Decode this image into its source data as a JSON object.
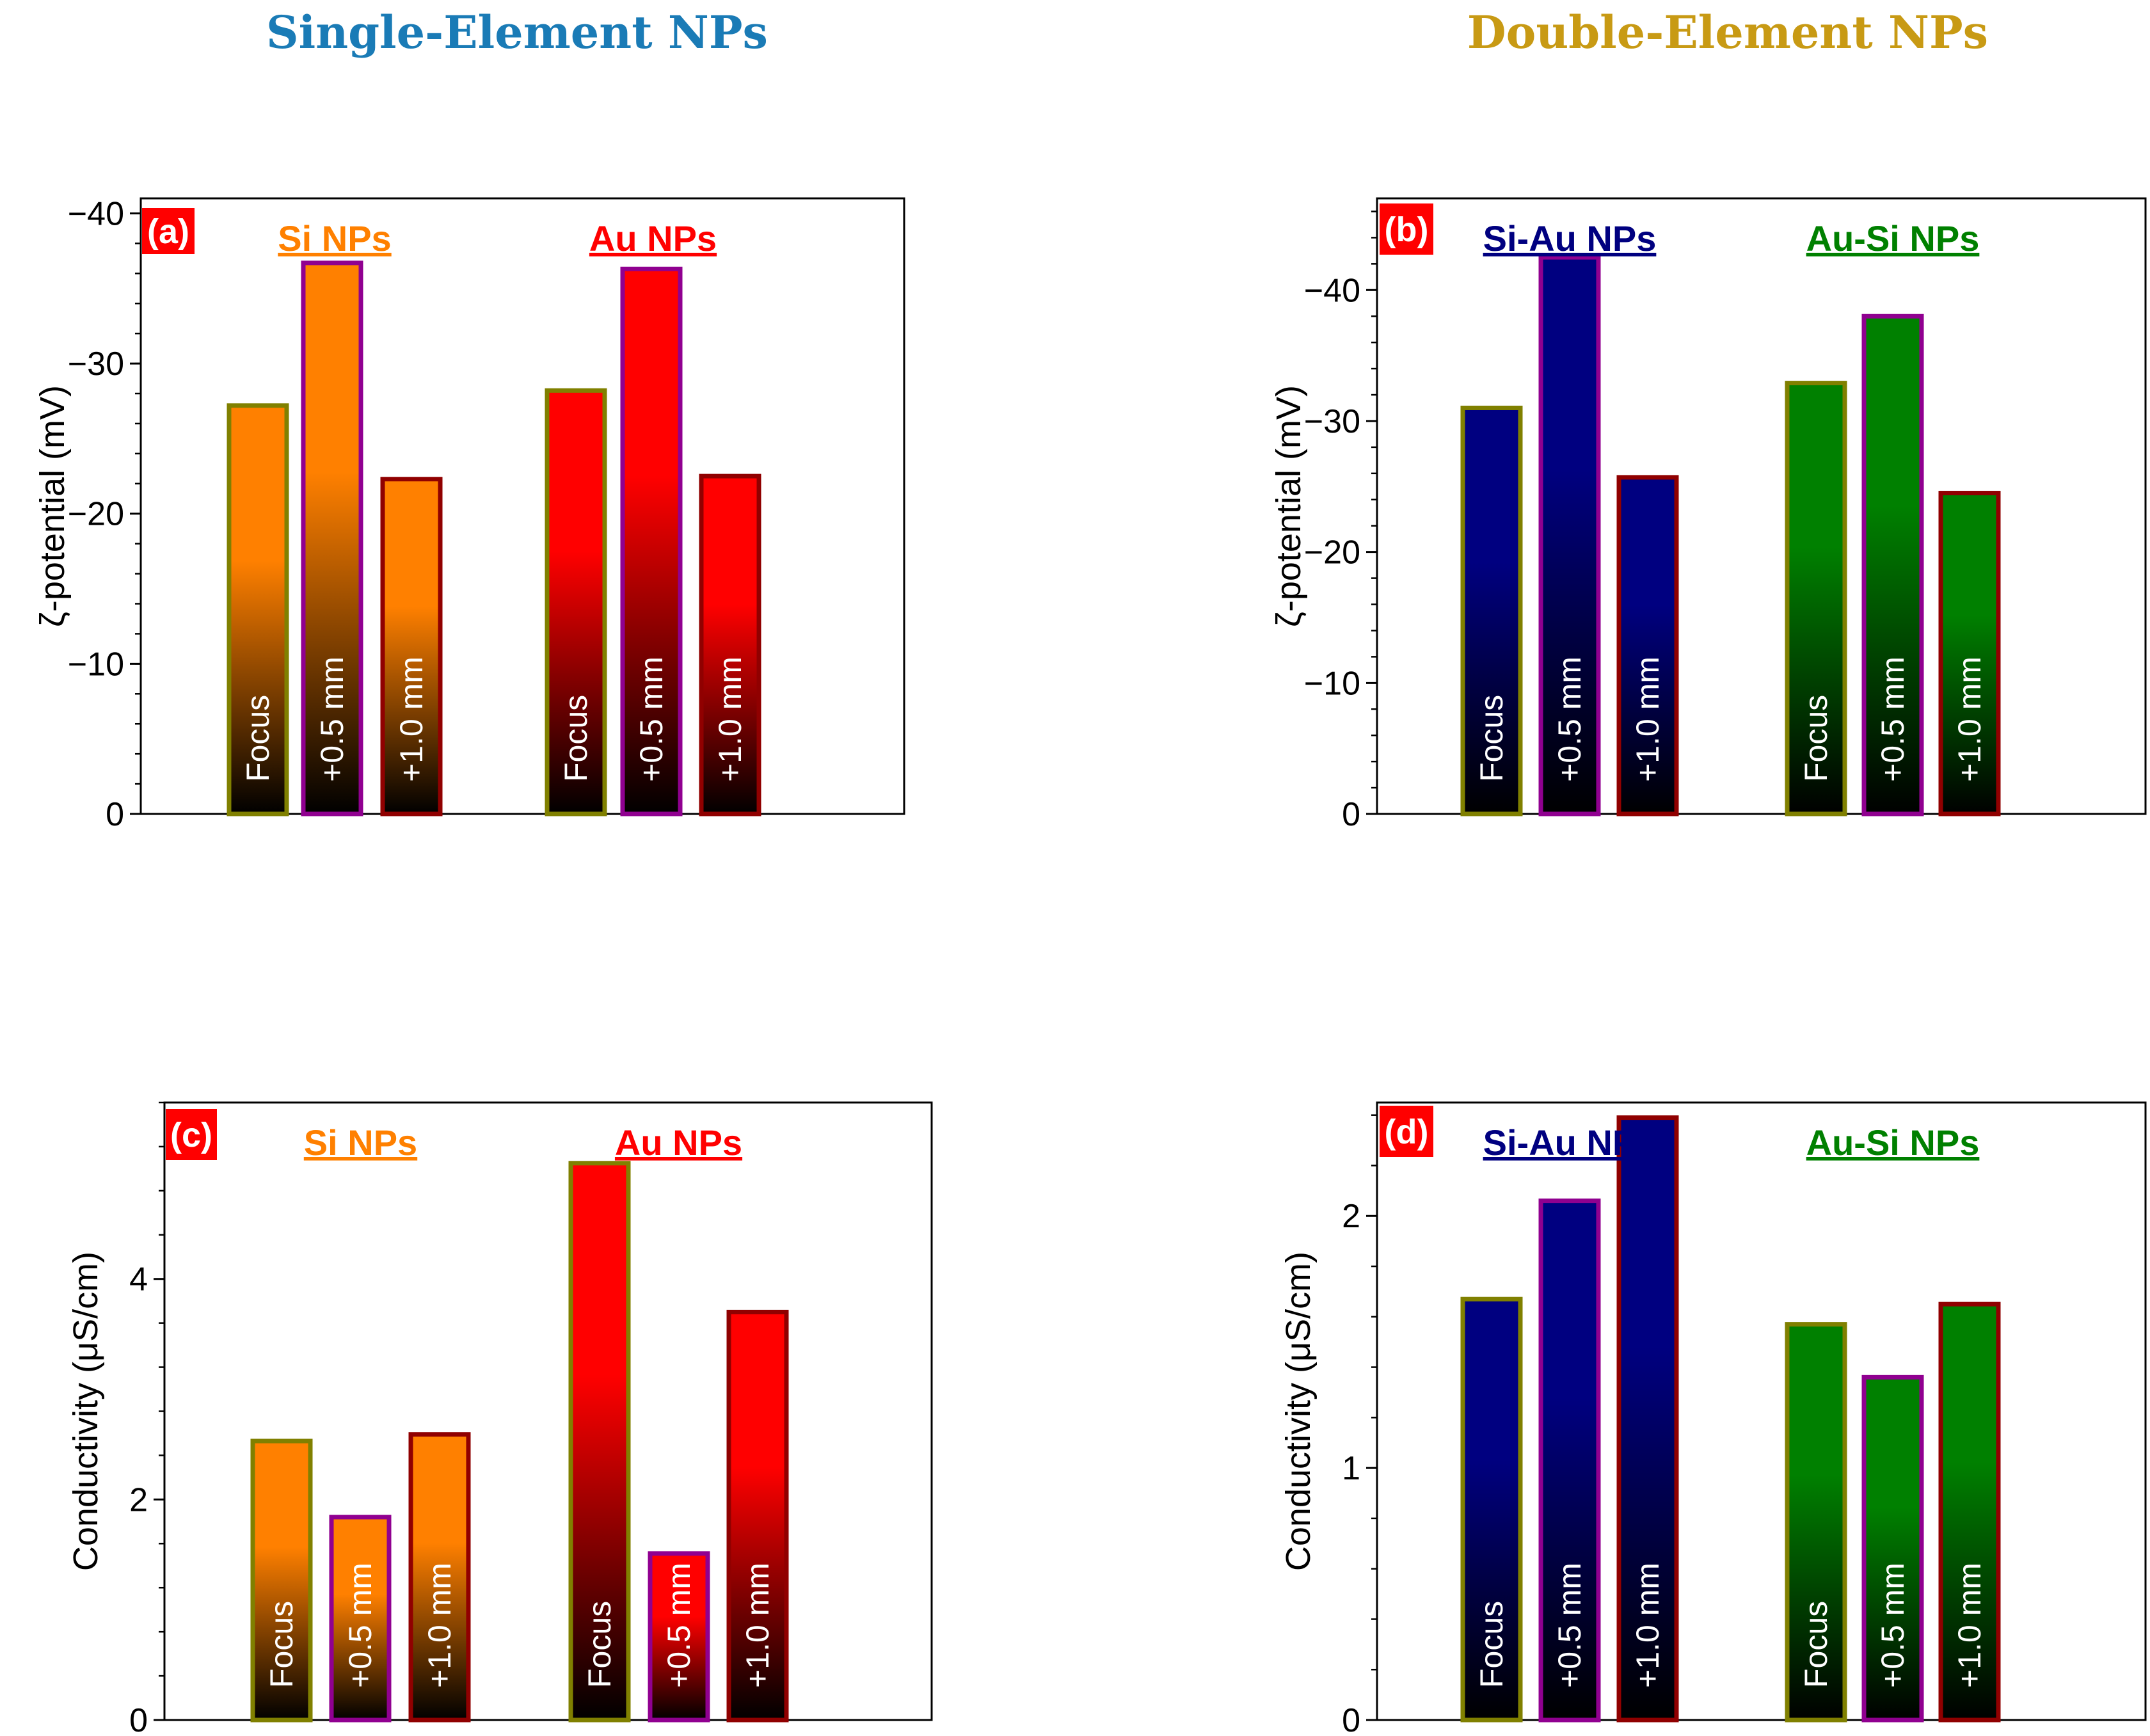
{
  "headers": {
    "left": "Single-Element NPs",
    "right": "Double-Element NPs",
    "left_color": "#1a7bb6",
    "right_color": "#c89a14"
  },
  "colors": {
    "si": "#ff8000",
    "au": "#ff0000",
    "siau": "#000080",
    "ausi": "#008000",
    "border_focus": "#808000",
    "border_05": "#900090",
    "border_10": "#900000",
    "panel_label_bg": "#ff0000"
  },
  "chart_data": [
    {
      "type": "bar",
      "panel": "(a)",
      "ylabel": "ζ-potential (mV)",
      "ylim": [
        0,
        -41
      ],
      "yticks": [
        0,
        -10,
        -20,
        -30,
        -40
      ],
      "ytick_labels": [
        "0",
        "−10",
        "−20",
        "−30",
        "−40"
      ],
      "minor_step": 2,
      "groups": [
        {
          "name": "Si NPs",
          "color": "#ff8000",
          "labels": [
            "Focus",
            "+0.5 mm",
            "+1.0 mm"
          ],
          "values": [
            -27.2,
            -36.7,
            -22.3
          ]
        },
        {
          "name": "Au NPs",
          "color": "#ff0000",
          "labels": [
            "Focus",
            "+0.5 mm",
            "+1.0 mm"
          ],
          "values": [
            -28.2,
            -36.3,
            -22.5
          ]
        }
      ]
    },
    {
      "type": "bar",
      "panel": "(b)",
      "ylabel": "ζ-potential (mV)",
      "ylim": [
        0,
        -47
      ],
      "yticks": [
        0,
        -10,
        -20,
        -30,
        -40
      ],
      "ytick_labels": [
        "0",
        "−10",
        "−20",
        "−30",
        "−40"
      ],
      "minor_step": 2,
      "groups": [
        {
          "name": "Si-Au NPs",
          "color": "#000080",
          "labels": [
            "Focus",
            "+0.5 mm",
            "+1.0 mm"
          ],
          "values": [
            -31.0,
            -42.5,
            -25.7
          ]
        },
        {
          "name": "Au-Si NPs",
          "color": "#008000",
          "labels": [
            "Focus",
            "+0.5 mm",
            "+1.0 mm"
          ],
          "values": [
            -32.9,
            -38.0,
            -24.5
          ]
        }
      ]
    },
    {
      "type": "bar",
      "panel": "(c)",
      "ylabel": "Conductivity (μS/cm)",
      "ylim": [
        0,
        5.6
      ],
      "yticks": [
        0,
        2,
        4
      ],
      "ytick_labels": [
        "0",
        "2",
        "4"
      ],
      "minor_step": 0.4,
      "groups": [
        {
          "name": "Si NPs",
          "color": "#ff8000",
          "labels": [
            "Focus",
            "+0.5 mm",
            "+1.0 mm"
          ],
          "values": [
            2.53,
            1.84,
            2.59
          ]
        },
        {
          "name": "Au NPs",
          "color": "#ff0000",
          "labels": [
            "Focus",
            "+0.5 mm",
            "+1.0 mm"
          ],
          "values": [
            5.05,
            1.51,
            3.7
          ]
        }
      ]
    },
    {
      "type": "bar",
      "panel": "(d)",
      "ylabel": "Conductivity (μS/cm)",
      "ylim": [
        0,
        2.45
      ],
      "yticks": [
        0,
        1,
        2
      ],
      "ytick_labels": [
        "0",
        "1",
        "2"
      ],
      "minor_step": 0.2,
      "groups": [
        {
          "name": "Si-Au NPs",
          "color": "#000080",
          "labels": [
            "Focus",
            "+0.5 mm",
            "+1.0 mm"
          ],
          "values": [
            1.67,
            2.06,
            2.39
          ]
        },
        {
          "name": "Au-Si NPs",
          "color": "#008000",
          "labels": [
            "Focus",
            "+0.5 mm",
            "+1.0 mm"
          ],
          "values": [
            1.57,
            1.36,
            1.65
          ]
        }
      ]
    }
  ]
}
